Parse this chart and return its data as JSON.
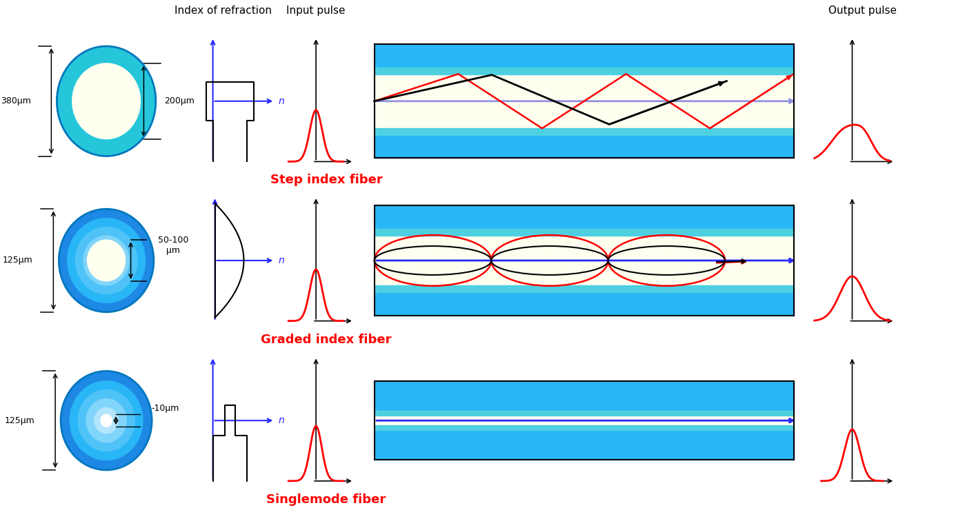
{
  "bg_color": "#ffffff",
  "cyan_outer": "#29b6f6",
  "cyan_mid": "#4fc3f7",
  "cyan_dark": "#0288d1",
  "cyan_cladding": "#26c6da",
  "cyan_thin_band": "#80deea",
  "cream_color": "#fffff0",
  "blue_color": "#2626ff",
  "purple_line": "#9090e0",
  "red_color": "#ff0000",
  "black_color": "#000000",
  "row1_label": "Step index fiber",
  "row2_label": "Graded index fiber",
  "row3_label": "Singlemode fiber",
  "col1_label": "Index of refraction",
  "col2_label": "Input pulse",
  "col3_label": "Output pulse",
  "dim1_outer": "380μm",
  "dim1_inner": "200μm",
  "dim2_outer": "125μm",
  "dim2_inner": "50-100\nμm",
  "dim3_outer": "125μm",
  "dim3_inner": "-10μm"
}
